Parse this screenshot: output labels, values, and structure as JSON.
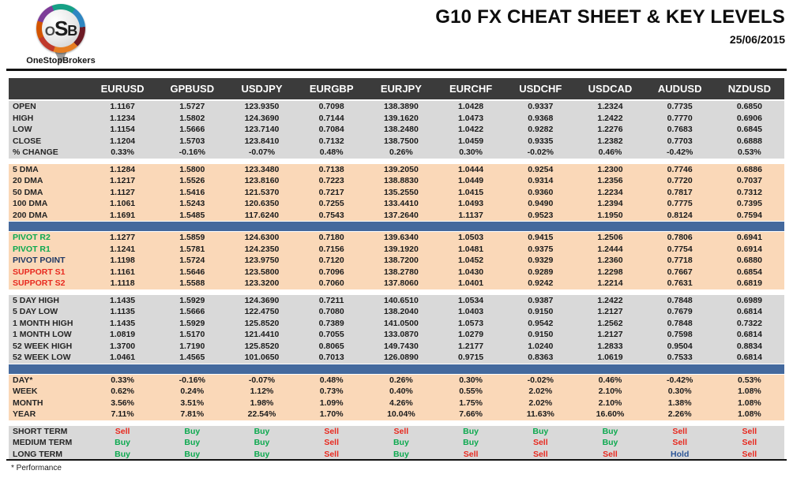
{
  "brand": {
    "logo_text": "OSB",
    "logo_caption": "OneStopBrokers"
  },
  "header": {
    "title": "G10 FX CHEAT SHEET & KEY LEVELS",
    "date": "25/06/2015"
  },
  "table": {
    "currency_columns": [
      "EURUSD",
      "GPBUSD",
      "USDJPY",
      "EURGBP",
      "EURJPY",
      "EURCHF",
      "USDCHF",
      "USDCAD",
      "AUDUSD",
      "NZDUSD"
    ],
    "sections": [
      {
        "id": "ohlc",
        "bg": "gray",
        "after": "gap",
        "rows": [
          {
            "label": "OPEN",
            "values": [
              "1.1167",
              "1.5727",
              "123.9350",
              "0.7098",
              "138.3890",
              "1.0428",
              "0.9337",
              "1.2324",
              "0.7735",
              "0.6850"
            ]
          },
          {
            "label": "HIGH",
            "values": [
              "1.1234",
              "1.5802",
              "124.3690",
              "0.7144",
              "139.1620",
              "1.0473",
              "0.9368",
              "1.2422",
              "0.7770",
              "0.6906"
            ]
          },
          {
            "label": "LOW",
            "values": [
              "1.1154",
              "1.5666",
              "123.7140",
              "0.7084",
              "138.2480",
              "1.0422",
              "0.9282",
              "1.2276",
              "0.7683",
              "0.6845"
            ]
          },
          {
            "label": "CLOSE",
            "values": [
              "1.1204",
              "1.5703",
              "123.8410",
              "0.7132",
              "138.7500",
              "1.0459",
              "0.9335",
              "1.2382",
              "0.7703",
              "0.6888"
            ]
          },
          {
            "label": "% CHANGE",
            "values": [
              "0.33%",
              "-0.16%",
              "-0.07%",
              "0.48%",
              "0.26%",
              "0.30%",
              "-0.02%",
              "0.46%",
              "-0.42%",
              "0.53%"
            ]
          }
        ]
      },
      {
        "id": "dma",
        "bg": "peach",
        "after": "bar",
        "rows": [
          {
            "label": "5 DMA",
            "values": [
              "1.1284",
              "1.5800",
              "123.3480",
              "0.7138",
              "139.2050",
              "1.0444",
              "0.9254",
              "1.2300",
              "0.7746",
              "0.6886"
            ]
          },
          {
            "label": "20 DMA",
            "values": [
              "1.1217",
              "1.5526",
              "123.8160",
              "0.7223",
              "138.8830",
              "1.0449",
              "0.9314",
              "1.2356",
              "0.7720",
              "0.7037"
            ]
          },
          {
            "label": "50 DMA",
            "values": [
              "1.1127",
              "1.5416",
              "121.5370",
              "0.7217",
              "135.2550",
              "1.0415",
              "0.9360",
              "1.2234",
              "0.7817",
              "0.7312"
            ]
          },
          {
            "label": "100 DMA",
            "values": [
              "1.1061",
              "1.5243",
              "120.6350",
              "0.7255",
              "133.4410",
              "1.0493",
              "0.9490",
              "1.2394",
              "0.7775",
              "0.7395"
            ]
          },
          {
            "label": "200 DMA",
            "values": [
              "1.1691",
              "1.5485",
              "117.6240",
              "0.7543",
              "137.2640",
              "1.1137",
              "0.9523",
              "1.1950",
              "0.8124",
              "0.7594"
            ]
          }
        ]
      },
      {
        "id": "pivots",
        "bg": "peach",
        "after": "gap",
        "rows": [
          {
            "label": "PIVOT R2",
            "label_color": "green",
            "values": [
              "1.1277",
              "1.5859",
              "124.6300",
              "0.7180",
              "139.6340",
              "1.0503",
              "0.9415",
              "1.2506",
              "0.7806",
              "0.6941"
            ]
          },
          {
            "label": "PIVOT R1",
            "label_color": "green",
            "values": [
              "1.1241",
              "1.5781",
              "124.2350",
              "0.7156",
              "139.1920",
              "1.0481",
              "0.9375",
              "1.2444",
              "0.7754",
              "0.6914"
            ]
          },
          {
            "label": "PIVOT POINT",
            "label_color": "navy",
            "values": [
              "1.1198",
              "1.5724",
              "123.9750",
              "0.7120",
              "138.7200",
              "1.0452",
              "0.9329",
              "1.2360",
              "0.7718",
              "0.6880"
            ]
          },
          {
            "label": "SUPPORT S1",
            "label_color": "red",
            "values": [
              "1.1161",
              "1.5646",
              "123.5800",
              "0.7096",
              "138.2780",
              "1.0430",
              "0.9289",
              "1.2298",
              "0.7667",
              "0.6854"
            ]
          },
          {
            "label": "SUPPORT S2",
            "label_color": "red",
            "values": [
              "1.1118",
              "1.5588",
              "123.3200",
              "0.7060",
              "137.8060",
              "1.0401",
              "0.9242",
              "1.2214",
              "0.7631",
              "0.6819"
            ]
          }
        ]
      },
      {
        "id": "ranges",
        "bg": "gray",
        "after": "bar",
        "rows": [
          {
            "label": "5 DAY HIGH",
            "values": [
              "1.1435",
              "1.5929",
              "124.3690",
              "0.7211",
              "140.6510",
              "1.0534",
              "0.9387",
              "1.2422",
              "0.7848",
              "0.6989"
            ]
          },
          {
            "label": "5 DAY LOW",
            "values": [
              "1.1135",
              "1.5666",
              "122.4750",
              "0.7080",
              "138.2040",
              "1.0403",
              "0.9150",
              "1.2127",
              "0.7679",
              "0.6814"
            ]
          },
          {
            "label": "1 MONTH HIGH",
            "values": [
              "1.1435",
              "1.5929",
              "125.8520",
              "0.7389",
              "141.0500",
              "1.0573",
              "0.9542",
              "1.2562",
              "0.7848",
              "0.7322"
            ]
          },
          {
            "label": "1 MONTH LOW",
            "values": [
              "1.0819",
              "1.5170",
              "121.4410",
              "0.7055",
              "133.0870",
              "1.0279",
              "0.9150",
              "1.2127",
              "0.7598",
              "0.6814"
            ]
          },
          {
            "label": "52 WEEK HIGH",
            "values": [
              "1.3700",
              "1.7190",
              "125.8520",
              "0.8065",
              "149.7430",
              "1.2177",
              "1.0240",
              "1.2833",
              "0.9504",
              "0.8834"
            ]
          },
          {
            "label": "52 WEEK LOW",
            "values": [
              "1.0461",
              "1.4565",
              "101.0650",
              "0.7013",
              "126.0890",
              "0.9715",
              "0.8363",
              "1.0619",
              "0.7533",
              "0.6814"
            ]
          }
        ]
      },
      {
        "id": "performance",
        "bg": "peach",
        "after": "gap",
        "rows": [
          {
            "label": "DAY*",
            "values": [
              "0.33%",
              "-0.16%",
              "-0.07%",
              "0.48%",
              "0.26%",
              "0.30%",
              "-0.02%",
              "0.46%",
              "-0.42%",
              "0.53%"
            ]
          },
          {
            "label": "WEEK",
            "values": [
              "0.62%",
              "0.24%",
              "1.12%",
              "0.73%",
              "0.40%",
              "0.55%",
              "2.02%",
              "2.10%",
              "0.30%",
              "1.08%"
            ]
          },
          {
            "label": "MONTH",
            "values": [
              "3.56%",
              "3.51%",
              "1.98%",
              "1.09%",
              "4.26%",
              "1.75%",
              "2.02%",
              "2.10%",
              "1.38%",
              "1.08%"
            ]
          },
          {
            "label": "YEAR",
            "values": [
              "7.11%",
              "7.81%",
              "22.54%",
              "1.70%",
              "10.04%",
              "7.66%",
              "11.63%",
              "16.60%",
              "2.26%",
              "1.08%"
            ]
          }
        ]
      },
      {
        "id": "signals",
        "bg": "gray",
        "after": "none",
        "signal": true,
        "rows": [
          {
            "label": "SHORT TERM",
            "values": [
              "Sell",
              "Buy",
              "Buy",
              "Sell",
              "Sell",
              "Buy",
              "Buy",
              "Buy",
              "Sell",
              "Sell"
            ]
          },
          {
            "label": "MEDIUM TERM",
            "values": [
              "Buy",
              "Buy",
              "Buy",
              "Sell",
              "Buy",
              "Buy",
              "Sell",
              "Buy",
              "Sell",
              "Sell"
            ]
          },
          {
            "label": "LONG TERM",
            "values": [
              "Buy",
              "Buy",
              "Buy",
              "Sell",
              "Buy",
              "Sell",
              "Sell",
              "Sell",
              "Hold",
              "Sell"
            ]
          }
        ]
      }
    ]
  },
  "footer": {
    "note": "* Performance"
  },
  "colors": {
    "header_bg": "#3B3B3B",
    "gray_bg": "#D9D9D9",
    "peach_bg": "#FAD8B8",
    "bar_blue": "#44699D",
    "green": "#0CA94F",
    "red": "#E8291F",
    "navy": "#1F3864",
    "hold_blue": "#2D5697"
  }
}
